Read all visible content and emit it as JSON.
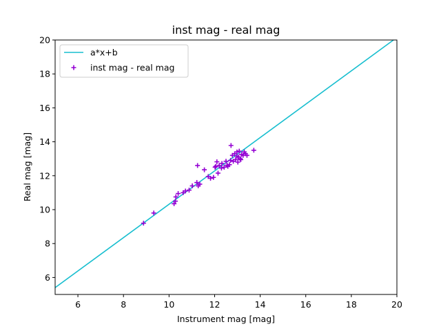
{
  "chart_data": {
    "type": "scatter",
    "title": "inst mag - real mag",
    "xlabel": "Instrument mag [mag]",
    "ylabel": "Real mag [mag]",
    "xlim": [
      5,
      20
    ],
    "ylim": [
      5,
      20
    ],
    "xticks": [
      6,
      8,
      10,
      12,
      14,
      16,
      18,
      20
    ],
    "yticks": [
      6,
      8,
      10,
      12,
      14,
      16,
      18,
      20
    ],
    "grid": false,
    "legend_position": "top-left",
    "series": [
      {
        "name": "a*x+b",
        "kind": "line",
        "color": "#17becf",
        "x": [
          5.0,
          19.85
        ],
        "y": [
          5.4,
          20.0
        ]
      },
      {
        "name": "inst mag - real mag",
        "kind": "scatter",
        "marker": "plus",
        "color": "#9400d3",
        "points": [
          [
            8.88,
            9.2
          ],
          [
            9.33,
            9.8
          ],
          [
            10.22,
            10.35
          ],
          [
            10.28,
            10.5
          ],
          [
            10.3,
            10.75
          ],
          [
            10.4,
            10.95
          ],
          [
            10.62,
            11.0
          ],
          [
            10.72,
            11.1
          ],
          [
            10.88,
            11.15
          ],
          [
            11.02,
            11.4
          ],
          [
            11.22,
            11.6
          ],
          [
            11.28,
            11.4
          ],
          [
            11.25,
            12.6
          ],
          [
            11.35,
            11.5
          ],
          [
            11.55,
            12.35
          ],
          [
            11.72,
            11.95
          ],
          [
            11.82,
            11.85
          ],
          [
            12.02,
            12.5
          ],
          [
            12.1,
            12.82
          ],
          [
            12.15,
            12.15
          ],
          [
            12.2,
            12.6
          ],
          [
            12.32,
            12.72
          ],
          [
            12.42,
            12.5
          ],
          [
            12.5,
            12.85
          ],
          [
            12.58,
            12.55
          ],
          [
            12.65,
            12.65
          ],
          [
            12.7,
            12.9
          ],
          [
            12.72,
            13.78
          ],
          [
            12.78,
            13.2
          ],
          [
            12.82,
            12.85
          ],
          [
            12.88,
            13.3
          ],
          [
            12.92,
            12.95
          ],
          [
            12.98,
            13.4
          ],
          [
            13.02,
            12.8
          ],
          [
            13.05,
            13.1
          ],
          [
            13.08,
            13.45
          ],
          [
            13.12,
            13.0
          ],
          [
            13.18,
            13.25
          ],
          [
            13.25,
            13.2
          ],
          [
            13.3,
            13.4
          ],
          [
            13.35,
            13.3
          ],
          [
            13.42,
            13.2
          ],
          [
            13.72,
            13.5
          ],
          [
            12.55,
            12.62
          ],
          [
            12.98,
            13.15
          ],
          [
            13.15,
            12.95
          ],
          [
            12.3,
            12.45
          ],
          [
            11.95,
            11.9
          ],
          [
            12.05,
            12.55
          ]
        ]
      }
    ]
  }
}
